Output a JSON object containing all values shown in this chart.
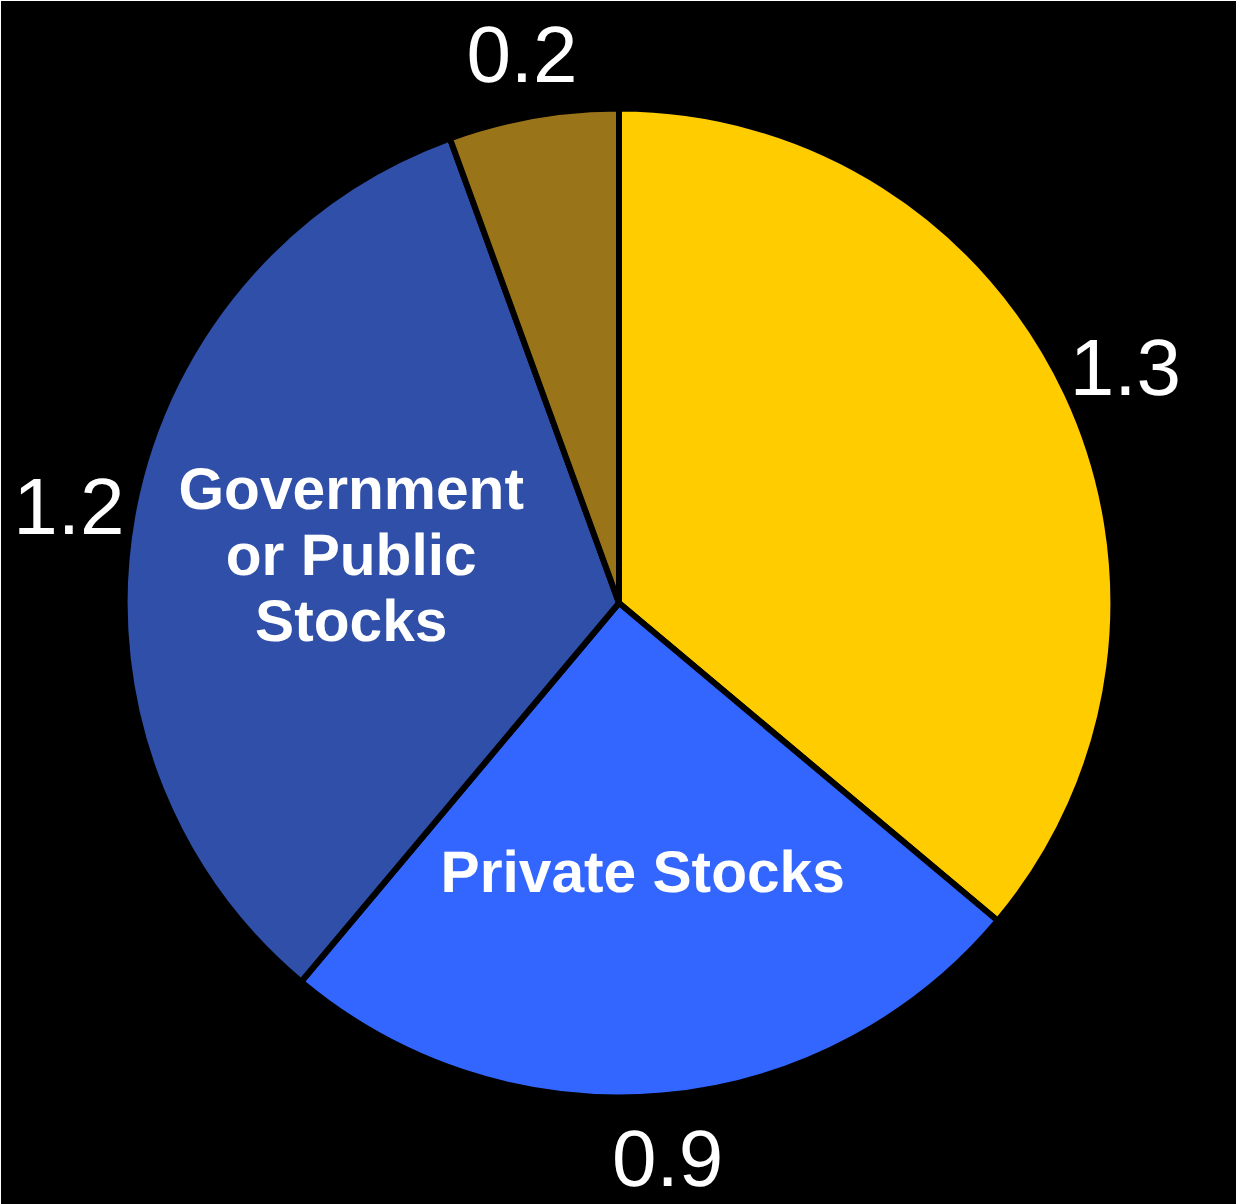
{
  "chart_data": {
    "type": "pie",
    "categories": [
      null,
      "Private Stocks",
      "Government\nor Public\nStocks",
      null
    ],
    "values": [
      1.3,
      0.9,
      1.2,
      0.2
    ],
    "colors": [
      "#ffcc00",
      "#3366ff",
      "#2f4fa8",
      "#9a7418"
    ],
    "data_labels": true
  }
}
